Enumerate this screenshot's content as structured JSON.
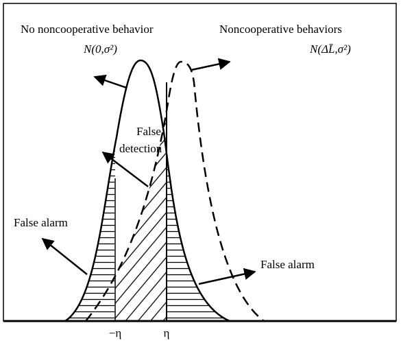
{
  "labels": {
    "no_noncoop": "No noncooperative behavior",
    "no_noncoop_dist": "N(0,σ²)",
    "noncoop": "Noncooperative behaviors",
    "noncoop_dist": "N(ΔL̄,σ²)",
    "false_detection_1": "False",
    "false_detection_2": "detection",
    "false_alarm_left": "False alarm",
    "false_alarm_right": "False alarm",
    "neg_eta": "−η",
    "eta": "η"
  }
}
